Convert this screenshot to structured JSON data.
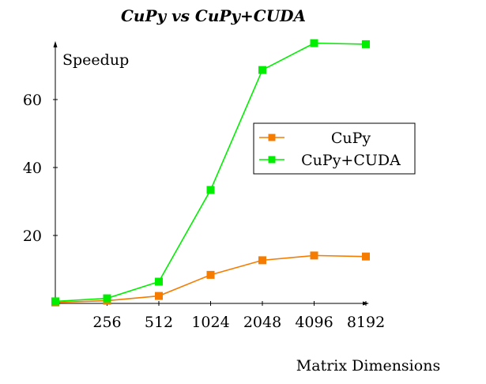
{
  "chart_data": {
    "type": "line",
    "title": "CuPy vs CuPy+CUDA",
    "xlabel": "Matrix Dimensions",
    "ylabel": "Speedup",
    "x": [
      128,
      256,
      512,
      1024,
      2048,
      4096,
      8192
    ],
    "x_tick_labels": [
      "256",
      "512",
      "1024",
      "2048",
      "4096",
      "8192"
    ],
    "y_ticks": [
      20,
      40,
      60
    ],
    "ylim": [
      0,
      77
    ],
    "grid": false,
    "legend_position": "right",
    "series": [
      {
        "name": "CuPy",
        "color": "#f57c00",
        "values": [
          0.3,
          0.8,
          2.2,
          8.4,
          12.7,
          14.1,
          13.8
        ]
      },
      {
        "name": "CuPy+CUDA",
        "color": "#00ee00",
        "values": [
          0.6,
          1.5,
          6.4,
          33.4,
          68.7,
          76.6,
          76.3
        ]
      }
    ]
  }
}
